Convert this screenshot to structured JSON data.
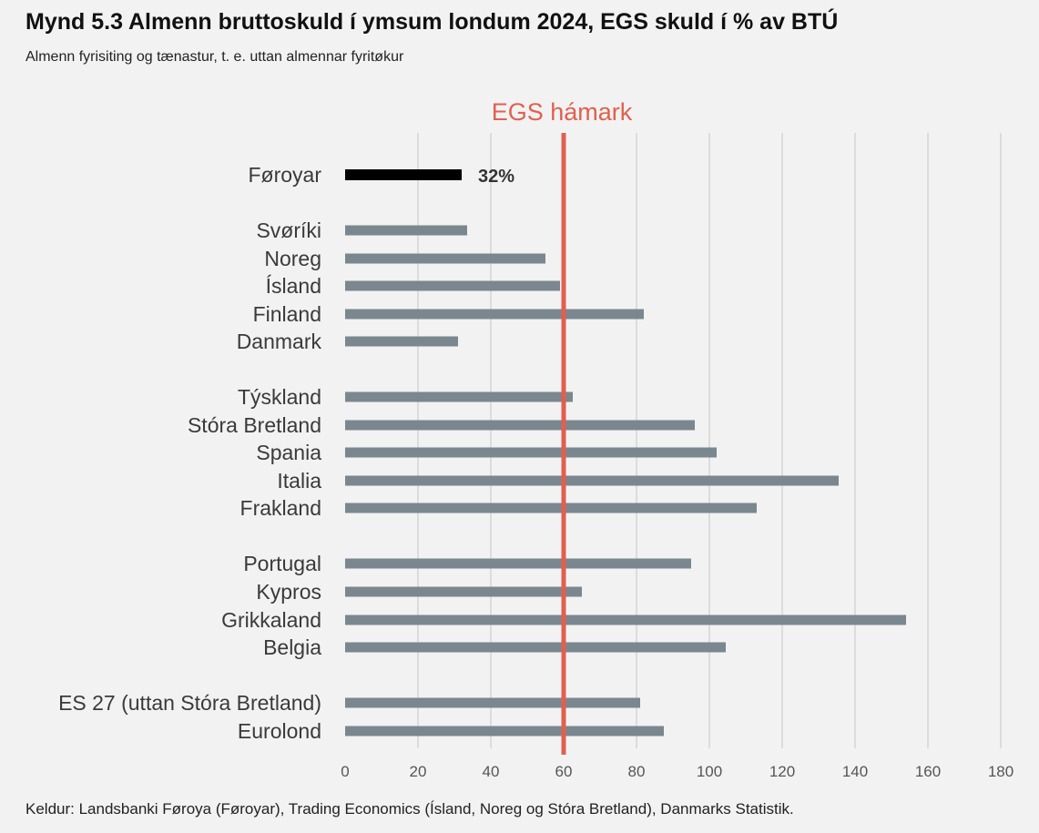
{
  "header": {
    "title": "Mynd 5.3 Almenn bruttoskuld í ymsum londum 2024, EGS skuld í % av BTÚ",
    "subtitle": "Almenn fyrisiting og tænastur, t. e. uttan almennar fyritøkur"
  },
  "footer": {
    "source": "Keldur: Landsbanki Føroya (Føroyar), Trading Economics (Ísland, Noreg og Stóra Bretland), Danmarks Statistik."
  },
  "chart_data": {
    "type": "bar",
    "orientation": "horizontal",
    "categories": [
      "Føroyar",
      "Svøríki",
      "Noreg",
      "Ísland",
      "Finland",
      "Danmark",
      "Týskland",
      "Stóra Bretland",
      "Spania",
      "Italia",
      "Frakland",
      "Portugal",
      "Kypros",
      "Grikkaland",
      "Belgia",
      "ES 27 (uttan Stóra Bretland)",
      "Eurolond"
    ],
    "values": [
      32,
      33.5,
      55,
      59,
      82,
      31,
      62.5,
      96,
      102,
      135.5,
      113,
      95,
      65,
      154,
      104.5,
      81,
      87.5
    ],
    "groups": [
      [
        0
      ],
      [
        1,
        2,
        3,
        4,
        5
      ],
      [
        6,
        7,
        8,
        9,
        10
      ],
      [
        11,
        12,
        13,
        14
      ],
      [
        15,
        16
      ]
    ],
    "highlight": {
      "category": "Føroyar",
      "label": "32%",
      "color": "#000000"
    },
    "bar_color": "#7a878e",
    "xlim": [
      0,
      180
    ],
    "xticks": [
      0,
      20,
      40,
      60,
      80,
      100,
      120,
      140,
      160,
      180
    ],
    "grid": true,
    "reference_line": {
      "value": 60,
      "label": "EGS hámark",
      "color": "#e06050"
    }
  }
}
